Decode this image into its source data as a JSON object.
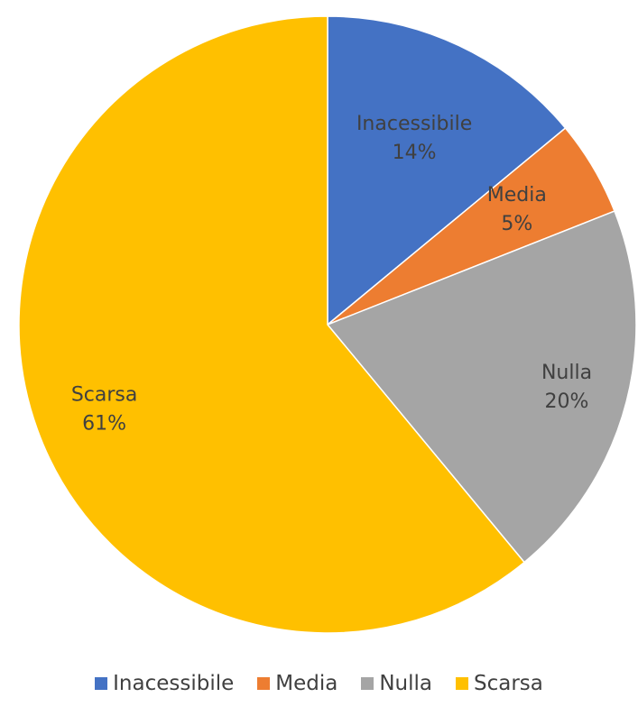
{
  "chart_data": {
    "type": "pie",
    "categories": [
      "Inacessibile",
      "Media",
      "Nulla",
      "Scarsa"
    ],
    "values": [
      14,
      5,
      20,
      61
    ],
    "labels": [
      "14%",
      "5%",
      "20%",
      "61%"
    ],
    "colors": [
      "#4472C4",
      "#ED7D31",
      "#A5A5A5",
      "#FFC000"
    ],
    "title": "",
    "legend_position": "bottom",
    "start_angle": "12 o'clock",
    "direction": "clockwise"
  }
}
